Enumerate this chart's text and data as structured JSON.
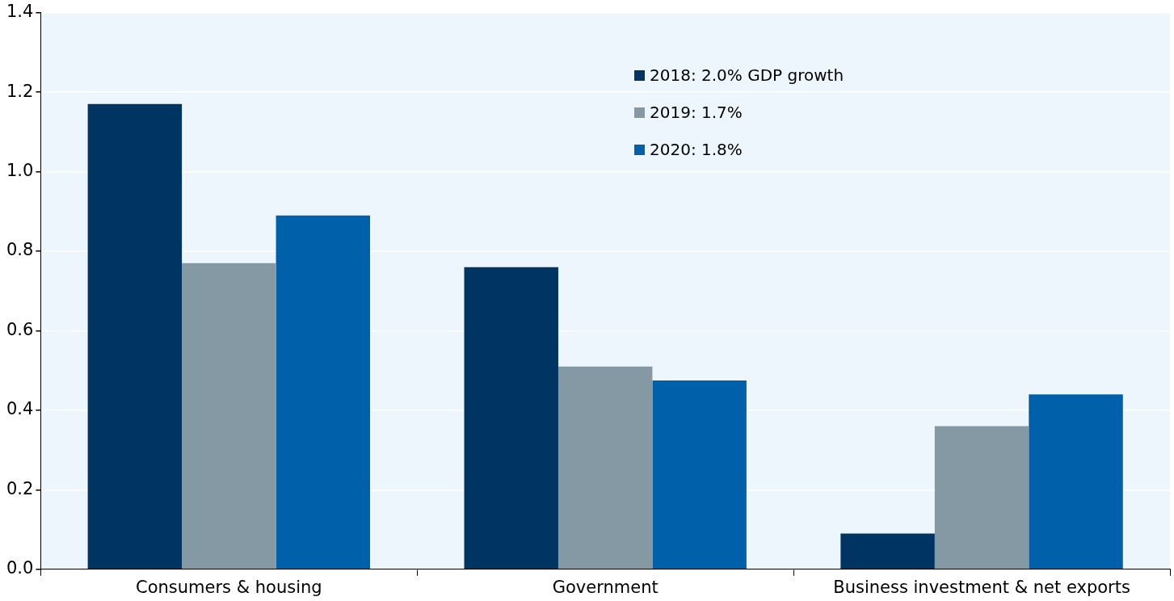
{
  "chart_data": {
    "type": "bar",
    "categories": [
      "Consumers & housing",
      "Government",
      "Business investment & net exports"
    ],
    "series": [
      {
        "name": "2018: 2.0% GDP growth",
        "color": "#003462",
        "values": [
          1.17,
          0.76,
          0.09
        ]
      },
      {
        "name": "2019: 1.7%",
        "color": "#8599a5",
        "values": [
          0.77,
          0.51,
          0.36
        ]
      },
      {
        "name": "2020: 1.8%",
        "color": "#0060aa",
        "values": [
          0.89,
          0.475,
          0.44
        ]
      }
    ],
    "ylim": [
      0,
      1.4
    ],
    "yticks": [
      {
        "value": 0,
        "label": "0.0"
      },
      {
        "value": 0.2,
        "label": "0.2"
      },
      {
        "value": 0.4,
        "label": "0.4"
      },
      {
        "value": 0.6,
        "label": "0.6"
      },
      {
        "value": 0.8,
        "label": "0.8"
      },
      {
        "value": 1,
        "label": "1.0"
      },
      {
        "value": 1.2,
        "label": "1.2"
      },
      {
        "value": 1.4,
        "label": "1.4"
      }
    ],
    "grid": "y",
    "legend": "top"
  }
}
